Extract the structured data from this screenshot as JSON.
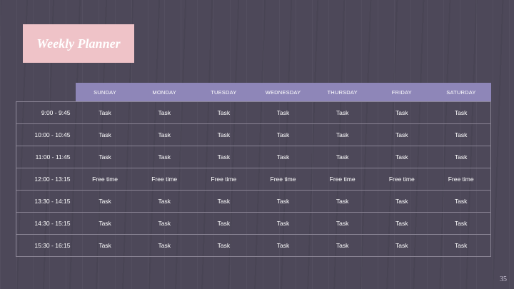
{
  "slide": {
    "title": "Weekly Planner",
    "page_number": "35",
    "colors": {
      "background": "#4d4859",
      "title_box": "#efc3c8",
      "header_row": "#8e86b8",
      "text": "#ffffff"
    }
  },
  "planner": {
    "days": [
      "SUNDAY",
      "MONDAY",
      "TUESDAY",
      "WEDNESDAY",
      "THURSDAY",
      "FRIDAY",
      "SATURDAY"
    ],
    "rows": [
      {
        "time": "9:00 - 9:45",
        "cells": [
          "Task",
          "Task",
          "Task",
          "Task",
          "Task",
          "Task",
          "Task"
        ]
      },
      {
        "time": "10:00 - 10:45",
        "cells": [
          "Task",
          "Task",
          "Task",
          "Task",
          "Task",
          "Task",
          "Task"
        ]
      },
      {
        "time": "11:00 - 11:45",
        "cells": [
          "Task",
          "Task",
          "Task",
          "Task",
          "Task",
          "Task",
          "Task"
        ]
      },
      {
        "time": "12:00 - 13:15",
        "cells": [
          "Free time",
          "Free time",
          "Free time",
          "Free time",
          "Free time",
          "Free time",
          "Free time"
        ]
      },
      {
        "time": "13:30 - 14:15",
        "cells": [
          "Task",
          "Task",
          "Task",
          "Task",
          "Task",
          "Task",
          "Task"
        ]
      },
      {
        "time": "14:30 - 15:15",
        "cells": [
          "Task",
          "Task",
          "Task",
          "Task",
          "Task",
          "Task",
          "Task"
        ]
      },
      {
        "time": "15:30 - 16:15",
        "cells": [
          "Task",
          "Task",
          "Task",
          "Task",
          "Task",
          "Task",
          "Task"
        ]
      }
    ]
  }
}
